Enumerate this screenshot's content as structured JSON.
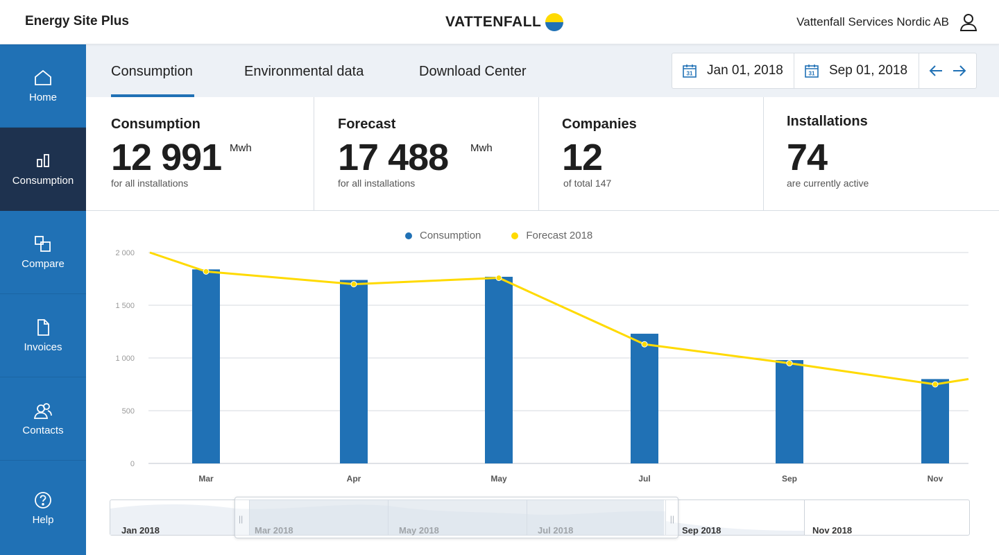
{
  "header": {
    "app_name": "Energy Site Plus",
    "brand": "VATTENFALL",
    "company": "Vattenfall Services Nordic AB",
    "brand_colors": {
      "yellow": "#ffda00",
      "blue": "#2071b5"
    }
  },
  "sidebar": {
    "items": [
      {
        "label": "Home",
        "icon": "home-icon"
      },
      {
        "label": "Consumption",
        "icon": "bar-chart-icon",
        "active": true
      },
      {
        "label": "Compare",
        "icon": "compare-icon"
      },
      {
        "label": "Invoices",
        "icon": "document-icon"
      },
      {
        "label": "Contacts",
        "icon": "contacts-icon"
      },
      {
        "label": "Help",
        "icon": "help-icon"
      }
    ]
  },
  "tabs": [
    {
      "label": "Consumption",
      "active": true
    },
    {
      "label": "Environmental data"
    },
    {
      "label": "Download Center"
    }
  ],
  "date_range": {
    "start": "Jan 01, 2018",
    "end": "Sep 01, 2018",
    "calendar_icon_text": "31"
  },
  "kpis": [
    {
      "title": "Consumption",
      "value": "12 991",
      "unit": "Mwh",
      "sub": "for all installations"
    },
    {
      "title": "Forecast",
      "value": "17 488",
      "unit": "Mwh",
      "sub": "for all installations"
    },
    {
      "title": "Companies",
      "value": "12",
      "unit": "",
      "sub": "of total 147"
    },
    {
      "title": "Installations",
      "value": "74",
      "unit": "",
      "sub": "are currently active"
    }
  ],
  "chart_data": {
    "type": "bar",
    "categories": [
      "Mar",
      "Apr",
      "May",
      "Jul",
      "Sep",
      "Nov"
    ],
    "series": [
      {
        "name": "Consumption",
        "type": "bar",
        "color": "#2071b5",
        "values": [
          1840,
          1740,
          1770,
          1230,
          980,
          800
        ]
      },
      {
        "name": "Forecast 2018",
        "type": "line",
        "color": "#ffda00",
        "values": [
          1820,
          1700,
          1760,
          1130,
          950,
          750
        ]
      }
    ],
    "yticks": [
      "2 000",
      "1 500",
      "1 000",
      "500",
      "0"
    ],
    "ylim": [
      0,
      2000
    ],
    "grid": true,
    "legend": "top-center"
  },
  "navigator": {
    "labels": [
      "Jan 2018",
      "Mar 2018",
      "May 2018",
      "Jul 2018",
      "Sep 2018",
      "Nov 2018"
    ]
  }
}
